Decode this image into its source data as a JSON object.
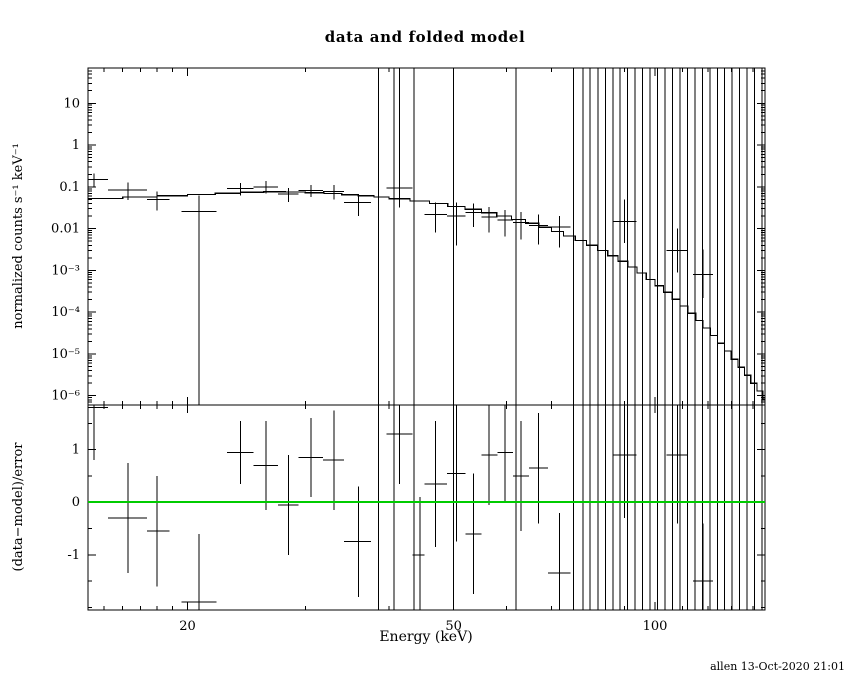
{
  "chart_data": {
    "type": "scatter",
    "title": "data and folded model",
    "xlabel": "Energy (keV)",
    "ylabel_top": "normalized counts s⁻¹ keV⁻¹",
    "ylabel_bottom": "(data−model)/error",
    "timestamp": "allen 13-Oct-2020 21:01",
    "colors": {
      "data": "#000000",
      "model": "#000000",
      "zero_line": "#00cc00",
      "background": "#ffffff"
    },
    "xlim": [
      14.2,
      146
    ],
    "x_major_ticks": [
      {
        "v": 20,
        "label": "20"
      },
      {
        "v": 50,
        "label": "50"
      },
      {
        "v": 100,
        "label": "100"
      }
    ],
    "x_minor_ticks": [
      15,
      16,
      17,
      18,
      19,
      30,
      40,
      60,
      70,
      80,
      90,
      110,
      120,
      130,
      140
    ],
    "top": {
      "ylim": [
        6e-07,
        70
      ],
      "scale": "log",
      "y_major_ticks": [
        {
          "v": 10,
          "label": "10"
        },
        {
          "v": 1,
          "label": "1"
        },
        {
          "v": 0.1,
          "label": "0.1"
        },
        {
          "v": 0.01,
          "label": "0.01"
        },
        {
          "v": 0.001,
          "label": "10⁻³"
        },
        {
          "v": 0.0001,
          "label": "10⁻⁴"
        },
        {
          "v": 1e-05,
          "label": "10⁻⁵"
        },
        {
          "v": 1e-06,
          "label": "10⁻⁶"
        }
      ],
      "points": [
        [
          14.5,
          14.2,
          15.2,
          0.15,
          0.1,
          0.21
        ],
        [
          16.3,
          15.2,
          17.4,
          0.085,
          0.048,
          0.128
        ],
        [
          18.0,
          17.4,
          18.8,
          0.05,
          0.027,
          0.078
        ],
        [
          20.8,
          19.6,
          22.1,
          0.026,
          1e-07,
          0.062
        ],
        [
          24.0,
          22.9,
          25.1,
          0.092,
          0.062,
          0.125
        ],
        [
          26.2,
          25.1,
          27.3,
          0.1,
          0.07,
          0.138
        ],
        [
          28.3,
          27.3,
          29.3,
          0.068,
          0.044,
          0.095
        ],
        [
          30.6,
          29.3,
          31.9,
          0.082,
          0.057,
          0.11
        ],
        [
          33.1,
          31.9,
          34.3,
          0.078,
          0.05,
          0.112
        ],
        [
          36.0,
          34.3,
          37.6,
          0.042,
          0.02,
          0.068
        ],
        [
          41.5,
          39.7,
          43.4,
          0.095,
          0.032,
          70
        ],
        [
          47.0,
          45.2,
          48.9,
          0.022,
          0.008,
          0.042
        ],
        [
          50.5,
          48.9,
          52.1,
          0.02,
          0.004,
          0.042
        ],
        [
          53.5,
          52.1,
          55.0,
          0.024,
          0.011,
          0.04
        ],
        [
          56.5,
          55.0,
          58.1,
          0.019,
          0.008,
          0.033
        ],
        [
          59.7,
          58.1,
          61.3,
          0.016,
          0.0065,
          0.028
        ],
        [
          63.0,
          61.3,
          64.8,
          0.014,
          0.0055,
          0.025
        ],
        [
          67.0,
          64.8,
          69.2,
          0.012,
          0.0042,
          0.022
        ],
        [
          72.0,
          69.2,
          74.8,
          0.011,
          0.0035,
          0.02
        ],
        [
          90.0,
          86.5,
          93.8,
          0.015,
          0.0045,
          0.05
        ],
        [
          108,
          104,
          112,
          0.003,
          0.0009,
          0.01
        ],
        [
          118,
          114,
          122,
          0.0008,
          0.00022,
          0.0032
        ]
      ],
      "model_step": [
        [
          14.2,
          0.053
        ],
        [
          16,
          0.057
        ],
        [
          18,
          0.061
        ],
        [
          20,
          0.066
        ],
        [
          22,
          0.07
        ],
        [
          24,
          0.074
        ],
        [
          26,
          0.076
        ],
        [
          28,
          0.075
        ],
        [
          30,
          0.072
        ],
        [
          32,
          0.069
        ],
        [
          34,
          0.065
        ],
        [
          36,
          0.061
        ],
        [
          38,
          0.057
        ],
        [
          40,
          0.052
        ],
        [
          43,
          0.046
        ],
        [
          46,
          0.04
        ],
        [
          49,
          0.034
        ],
        [
          52,
          0.029
        ],
        [
          55,
          0.024
        ],
        [
          58,
          0.02
        ],
        [
          61,
          0.0165
        ],
        [
          64,
          0.0135
        ],
        [
          67,
          0.0108
        ],
        [
          70,
          0.0086
        ],
        [
          73,
          0.0067
        ],
        [
          76,
          0.0052
        ],
        [
          79,
          0.004
        ],
        [
          82,
          0.003
        ],
        [
          85,
          0.00225
        ],
        [
          88,
          0.00165
        ],
        [
          91,
          0.0012
        ],
        [
          94,
          0.00086
        ],
        [
          97,
          0.00061
        ],
        [
          100,
          0.00043
        ],
        [
          103,
          0.0003
        ],
        [
          106,
          0.000205
        ],
        [
          109,
          0.00014
        ],
        [
          112,
          9.4e-05
        ],
        [
          115,
          6.3e-05
        ],
        [
          118,
          4.2e-05
        ],
        [
          121,
          2.75e-05
        ],
        [
          124,
          1.8e-05
        ],
        [
          127,
          1.17e-05
        ],
        [
          130,
          7.5e-06
        ],
        [
          133,
          4.8e-06
        ],
        [
          136,
          3.1e-06
        ],
        [
          139,
          2e-06
        ],
        [
          142,
          1.3e-06
        ],
        [
          145,
          8.2e-07
        ]
      ],
      "full_lines": [
        38.6,
        40.7,
        43.6,
        50.0,
        62.0,
        75.5,
        78.0,
        80.0,
        82.1,
        84.3,
        86.5,
        88.7,
        91.0,
        93.4,
        95.8,
        98.3,
        100.9,
        103.5,
        106.2,
        109.0,
        111.8,
        114.7,
        117.7,
        120.8,
        123.9,
        127.1,
        130.4,
        133.8,
        137.3,
        140.9,
        144.6
      ]
    },
    "bottom": {
      "ylim": [
        -2.05,
        1.85
      ],
      "scale": "linear",
      "y_major_ticks": [
        {
          "v": 1,
          "label": "1"
        },
        {
          "v": 0,
          "label": "0"
        },
        {
          "v": -1,
          "label": "-1"
        }
      ],
      "y_minor_ticks": [
        -2,
        -1.5,
        -0.5,
        0.5,
        1.5
      ],
      "zero_line": 0,
      "points": [
        [
          14.5,
          14.2,
          15.2,
          1.8,
          0.8,
          2.4
        ],
        [
          16.3,
          15.2,
          17.4,
          -0.3,
          -1.35,
          0.75
        ],
        [
          18.0,
          17.4,
          18.8,
          -0.55,
          -1.6,
          0.5
        ],
        [
          20.8,
          19.6,
          22.1,
          -1.9,
          -3.2,
          -0.6
        ],
        [
          24.0,
          22.9,
          25.1,
          0.95,
          0.35,
          1.55
        ],
        [
          26.2,
          25.1,
          27.3,
          0.7,
          -0.15,
          1.55
        ],
        [
          28.3,
          27.3,
          29.3,
          -0.05,
          -1.0,
          0.9
        ],
        [
          30.6,
          29.3,
          31.9,
          0.85,
          0.1,
          1.6
        ],
        [
          33.1,
          31.9,
          34.3,
          0.8,
          -0.15,
          1.75
        ],
        [
          36.0,
          34.3,
          37.6,
          -0.75,
          -1.8,
          0.3
        ],
        [
          41.5,
          39.7,
          43.4,
          1.3,
          0.35,
          2.25
        ],
        [
          44.5,
          43.4,
          45.2,
          -1.0,
          -2.1,
          0.1
        ],
        [
          47.0,
          45.2,
          48.9,
          0.35,
          -0.85,
          1.55
        ],
        [
          50.5,
          48.9,
          52.1,
          0.55,
          -0.75,
          1.85
        ],
        [
          53.5,
          52.1,
          55.0,
          -0.6,
          -1.75,
          0.55
        ],
        [
          56.5,
          55.0,
          58.1,
          0.9,
          -0.05,
          1.85
        ],
        [
          59.7,
          58.1,
          61.3,
          0.95,
          0.0,
          1.9
        ],
        [
          63.0,
          61.3,
          64.8,
          0.5,
          -0.55,
          1.55
        ],
        [
          67.0,
          64.8,
          69.2,
          0.65,
          -0.4,
          1.7
        ],
        [
          72.0,
          69.2,
          74.8,
          -1.35,
          -2.5,
          -0.2
        ],
        [
          90.0,
          86.5,
          93.8,
          0.9,
          -0.3,
          2.1
        ],
        [
          108,
          104,
          112,
          0.9,
          -0.4,
          2.2
        ],
        [
          118,
          114,
          122,
          -1.5,
          -2.6,
          -0.4
        ]
      ],
      "full_lines": [
        38.6,
        40.7,
        43.6,
        50.0,
        62.0,
        75.5,
        78.0,
        80.0,
        82.1,
        84.3,
        86.5,
        88.7,
        91.0,
        93.4,
        95.8,
        98.3,
        100.9,
        103.5,
        106.2,
        109.0,
        111.8,
        114.7,
        117.7,
        120.8,
        123.9,
        127.1,
        130.4,
        133.8,
        137.3,
        140.9,
        144.6
      ]
    }
  }
}
